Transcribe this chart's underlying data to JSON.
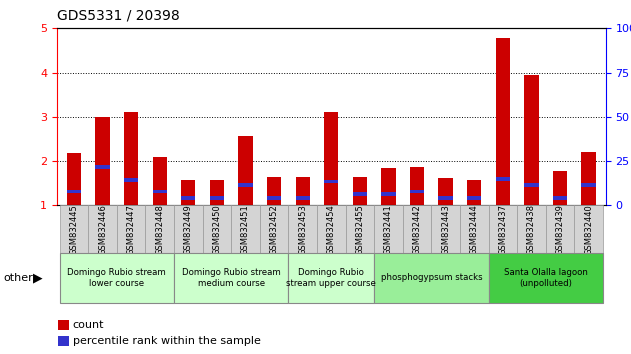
{
  "title": "GDS5331 / 20398",
  "samples": [
    "GSM832445",
    "GSM832446",
    "GSM832447",
    "GSM832448",
    "GSM832449",
    "GSM832450",
    "GSM832451",
    "GSM832452",
    "GSM832453",
    "GSM832454",
    "GSM832455",
    "GSM832441",
    "GSM832442",
    "GSM832443",
    "GSM832444",
    "GSM832437",
    "GSM832438",
    "GSM832439",
    "GSM832440"
  ],
  "count_values": [
    2.18,
    3.0,
    3.1,
    2.1,
    1.57,
    1.57,
    2.57,
    1.65,
    1.65,
    3.1,
    1.65,
    1.85,
    1.87,
    1.62,
    1.57,
    4.78,
    3.95,
    1.78,
    2.2
  ],
  "pct_heights": [
    1.27,
    1.82,
    1.53,
    1.27,
    1.12,
    1.12,
    1.42,
    1.12,
    1.12,
    1.5,
    1.22,
    1.22,
    1.27,
    1.12,
    1.12,
    1.55,
    1.42,
    1.12,
    1.42
  ],
  "pct_bar_height": 0.08,
  "ylim_left": [
    1,
    5
  ],
  "ylim_right": [
    0,
    100
  ],
  "yticks_left": [
    1,
    2,
    3,
    4,
    5
  ],
  "yticks_right": [
    0,
    25,
    50,
    75,
    100
  ],
  "count_color": "#cc0000",
  "percentile_color": "#3333cc",
  "bar_width": 0.5,
  "groups": [
    {
      "label": "Domingo Rubio stream\nlower course",
      "start": 0,
      "end": 4,
      "color": "#ccffcc"
    },
    {
      "label": "Domingo Rubio stream\nmedium course",
      "start": 4,
      "end": 8,
      "color": "#ccffcc"
    },
    {
      "label": "Domingo Rubio\nstream upper course",
      "start": 8,
      "end": 11,
      "color": "#ccffcc"
    },
    {
      "label": "phosphogypsum stacks",
      "start": 11,
      "end": 15,
      "color": "#99ee99"
    },
    {
      "label": "Santa Olalla lagoon\n(unpolluted)",
      "start": 15,
      "end": 19,
      "color": "#44cc44"
    }
  ],
  "legend_count": "count",
  "legend_pct": "percentile rank within the sample",
  "other_label": "other",
  "bg_plot": "#ffffff",
  "bg_figure": "#ffffff",
  "xtick_bg": "#d4d4d4",
  "xtick_edge": "#999999"
}
